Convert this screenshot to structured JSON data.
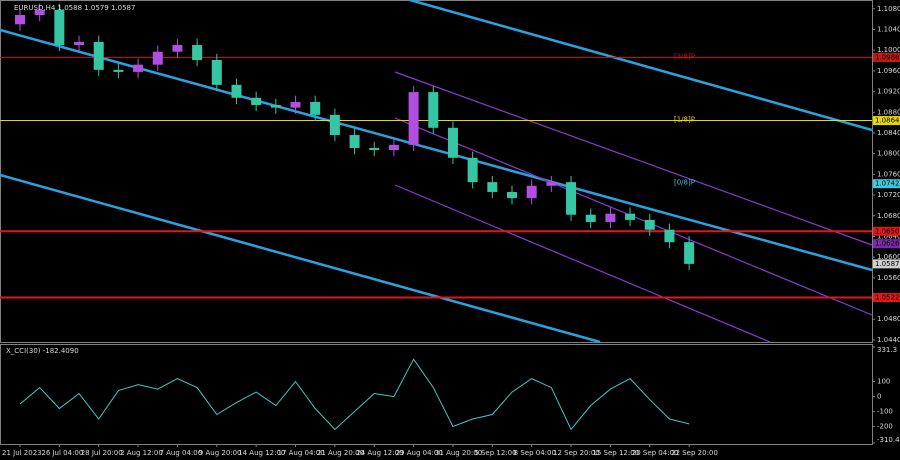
{
  "chart_data": {
    "type": "candlestick",
    "title": "EURUSD,H4 1.0588 1.0579 1.0587",
    "categories": [
      "21 Jul 2023",
      null,
      "26 Jul 04:00",
      null,
      "28 Jul 20:00",
      null,
      "2 Aug 12:00",
      null,
      "7 Aug 04:00",
      null,
      "9 Aug 20:00",
      null,
      "14 Aug 12:00",
      null,
      "17 Aug 04:00",
      null,
      "21 Aug 20:00",
      null,
      "24 Aug 12:00",
      null,
      "29 Aug 04:00",
      null,
      "31 Aug 20:00",
      null,
      "5 Sep 12:00",
      null,
      "8 Sep 04:00",
      null,
      "12 Sep 20:00",
      null,
      "15 Sep 12:00",
      null,
      "20 Sep 04:00",
      null,
      "22 Sep 20:00"
    ],
    "open": [
      1.105,
      1.1068,
      1.1078,
      1.101,
      1.1016,
      1.0962,
      1.0958,
      1.0972,
      1.0997,
      1.101,
      1.0981,
      1.0933,
      1.0908,
      1.0894,
      1.0889,
      1.09,
      1.0875,
      1.0836,
      1.0811,
      1.0807,
      1.0817,
      1.0919,
      1.085,
      1.0792,
      1.0745,
      1.0726,
      1.0714,
      1.0738,
      1.0745,
      1.0682,
      1.0668,
      1.0684,
      1.0672,
      1.0653,
      1.0629
    ],
    "high": [
      1.108,
      1.109,
      1.109,
      1.1028,
      1.1028,
      1.0974,
      1.0984,
      1.1009,
      1.1022,
      1.1022,
      1.0993,
      1.0945,
      1.092,
      1.0906,
      1.0912,
      1.0912,
      1.0887,
      1.0848,
      1.0823,
      1.0829,
      1.0931,
      1.0931,
      1.0862,
      1.0804,
      1.0757,
      1.0738,
      1.075,
      1.0757,
      1.0757,
      1.0694,
      1.0696,
      1.0696,
      1.0684,
      1.0665,
      1.0641
    ],
    "low": [
      1.1038,
      1.1056,
      1.0998,
      1.0998,
      1.095,
      1.0946,
      1.0946,
      1.096,
      1.0985,
      1.0969,
      1.0921,
      1.0896,
      1.0882,
      1.0877,
      1.0877,
      1.0863,
      1.0824,
      1.0799,
      1.0795,
      1.0795,
      1.0805,
      1.0838,
      1.078,
      1.0733,
      1.0714,
      1.0702,
      1.0702,
      1.0726,
      1.067,
      1.0656,
      1.0656,
      1.066,
      1.0641,
      1.0617,
      1.0575
    ],
    "close": [
      1.1068,
      1.1078,
      1.101,
      1.1016,
      1.0962,
      1.0958,
      1.0972,
      1.0997,
      1.101,
      1.0981,
      1.0933,
      1.0908,
      1.0894,
      1.0889,
      1.09,
      1.0875,
      1.0836,
      1.0811,
      1.0807,
      1.0817,
      1.0919,
      1.085,
      1.0792,
      1.0745,
      1.0726,
      1.0714,
      1.0738,
      1.0745,
      1.0682,
      1.0668,
      1.0684,
      1.0672,
      1.0653,
      1.0629,
      1.0587
    ],
    "up_color": "#b04fe0",
    "down_color": "#36c6a4",
    "ylim": [
      1.0436,
      1.1097
    ],
    "yticks": [
      {
        "value": 1.108,
        "label": "1.1080"
      },
      {
        "value": 1.104,
        "label": "1.1040"
      },
      {
        "value": 1.1,
        "label": "1.1000"
      },
      {
        "value": 1.096,
        "label": "1.0960"
      },
      {
        "value": 1.092,
        "label": "1.0920"
      },
      {
        "value": 1.088,
        "label": "1.0880"
      },
      {
        "value": 1.084,
        "label": "1.0840"
      },
      {
        "value": 1.08,
        "label": "1.0800"
      },
      {
        "value": 1.076,
        "label": "1.0760"
      },
      {
        "value": 1.072,
        "label": "1.0720"
      },
      {
        "value": 1.068,
        "label": "1.0680"
      },
      {
        "value": 1.064,
        "label": "1.0640"
      },
      {
        "value": 1.06,
        "label": "1.0600"
      },
      {
        "value": 1.056,
        "label": "1.0560"
      },
      {
        "value": 1.052,
        "label": "1.0520"
      },
      {
        "value": 1.048,
        "label": "1.0480"
      },
      {
        "value": 1.044,
        "label": "1.0440"
      }
    ],
    "levels": [
      {
        "value": 1.0986,
        "label": "1.0986",
        "color": "#c81818",
        "tag": "[3/8]P",
        "line": true
      },
      {
        "value": 1.0864,
        "label": "1.0864",
        "color": "#e8d800",
        "tag": "[1/8]P",
        "line": true
      },
      {
        "value": 1.0742,
        "label": "1.0742",
        "color": "#3ec9e0",
        "tag": "[0/8]P",
        "line": false
      },
      {
        "value": 1.065,
        "label": "1.0650",
        "color": "#e01818",
        "line": true
      },
      {
        "value": 1.0626,
        "label": "1.0626",
        "color": "#7a2aa8",
        "line": false
      },
      {
        "value": 1.0587,
        "label": "1.0587",
        "color": "#d0d0d0",
        "line": false
      },
      {
        "value": 1.0522,
        "label": "1.0522",
        "color": "#e01818",
        "line": true
      }
    ],
    "indicator": {
      "type": "line",
      "title": "X_CCI(30) -182.4090",
      "color": "#3ec9c9",
      "values": [
        -50,
        60,
        -80,
        20,
        -150,
        40,
        80,
        50,
        120,
        60,
        -120,
        -40,
        30,
        -60,
        100,
        -80,
        -220,
        -100,
        20,
        0,
        250,
        60,
        -200,
        -150,
        -120,
        30,
        120,
        60,
        -220,
        -60,
        50,
        120,
        -20,
        -150,
        -182.409
      ],
      "ylim": [
        -310.449,
        331.3
      ],
      "yticks": [
        331.3,
        100,
        0,
        -100,
        -200,
        -310.449
      ]
    }
  }
}
